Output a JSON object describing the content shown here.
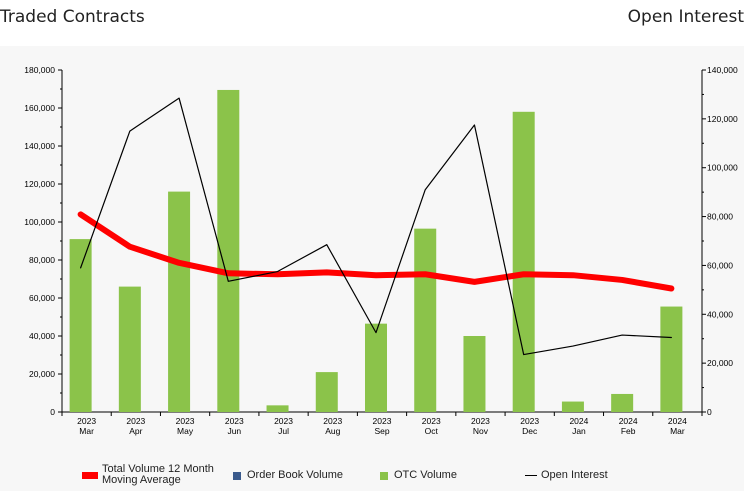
{
  "header": {
    "left_title": "Traded Contracts",
    "right_title": "Open Interest"
  },
  "chart_data": {
    "type": "bar",
    "categories": [
      [
        "2023",
        "Mar"
      ],
      [
        "2023",
        "Apr"
      ],
      [
        "2023",
        "May"
      ],
      [
        "2023",
        "Jun"
      ],
      [
        "2023",
        "Jul"
      ],
      [
        "2023",
        "Aug"
      ],
      [
        "2023",
        "Sep"
      ],
      [
        "2023",
        "Oct"
      ],
      [
        "2023",
        "Nov"
      ],
      [
        "2023",
        "Dec"
      ],
      [
        "2024",
        "Jan"
      ],
      [
        "2024",
        "Feb"
      ],
      [
        "2024",
        "Mar"
      ]
    ],
    "y_left": {
      "min": 0,
      "max": 180000,
      "ticks": [
        0,
        20000,
        40000,
        60000,
        80000,
        100000,
        120000,
        140000,
        160000,
        180000
      ],
      "tick_labels": [
        "0",
        "20,000",
        "40,000",
        "60,000",
        "80,000",
        "100,000",
        "120,000",
        "140,000",
        "160,000",
        "180,000"
      ]
    },
    "y_right": {
      "min": 0,
      "max": 140000,
      "ticks": [
        0,
        20000,
        40000,
        60000,
        80000,
        100000,
        120000,
        140000
      ],
      "tick_labels": [
        "0",
        "20,000",
        "40,000",
        "60,000",
        "80,000",
        "100,000",
        "120,000",
        "140,000"
      ]
    },
    "series": [
      {
        "name": "Total Volume 12 Month Moving Average",
        "kind": "line",
        "axis": "left",
        "color": "#ff0000",
        "values": [
          104000,
          87000,
          78500,
          73000,
          72500,
          73500,
          72000,
          72500,
          68500,
          72500,
          72000,
          69500,
          65000
        ]
      },
      {
        "name": "Order Book Volume",
        "kind": "bar",
        "axis": "left",
        "color": "#3a5a8c",
        "values": [
          0,
          0,
          0,
          0,
          0,
          0,
          0,
          0,
          0,
          0,
          0,
          0,
          0
        ]
      },
      {
        "name": "OTC Volume",
        "kind": "bar",
        "axis": "left",
        "color": "#8bc34a",
        "values": [
          91000,
          66000,
          116000,
          169500,
          3500,
          21000,
          46500,
          96500,
          40000,
          158000,
          5500,
          9500,
          55500
        ]
      },
      {
        "name": "Open Interest",
        "kind": "line",
        "axis": "right",
        "color": "#000000",
        "values": [
          59000,
          115000,
          128500,
          53500,
          57500,
          68500,
          32500,
          91000,
          117500,
          23500,
          27000,
          31500,
          30500
        ]
      }
    ],
    "legend_position": "bottom"
  },
  "legend": {
    "items": [
      {
        "label_line1": "Total Volume 12 Month",
        "label_line2": "Moving Average"
      },
      {
        "label": "Order Book Volume"
      },
      {
        "label": "OTC Volume"
      },
      {
        "label": "Open Interest"
      }
    ]
  }
}
